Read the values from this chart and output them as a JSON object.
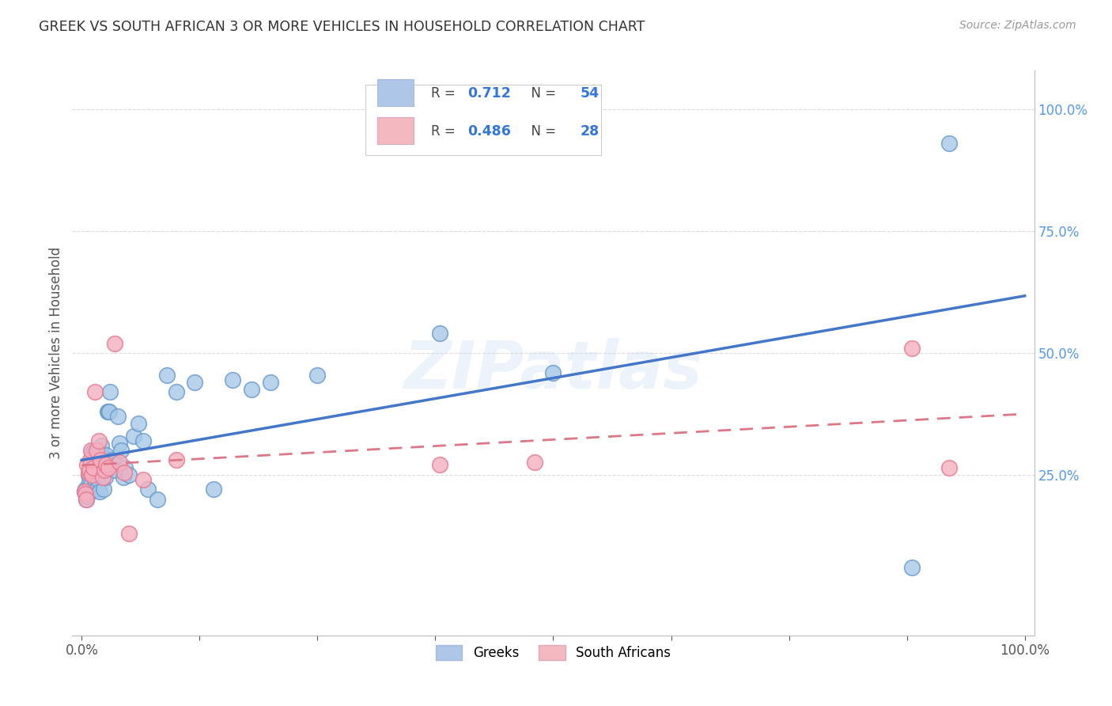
{
  "title": "GREEK VS SOUTH AFRICAN 3 OR MORE VEHICLES IN HOUSEHOLD CORRELATION CHART",
  "source": "Source: ZipAtlas.com",
  "ylabel": "3 or more Vehicles in Household",
  "right_yticks": [
    "100.0%",
    "75.0%",
    "50.0%",
    "25.0%"
  ],
  "right_ytick_vals": [
    1.0,
    0.75,
    0.5,
    0.25
  ],
  "xtick_vals": [
    0.0,
    0.125,
    0.25,
    0.375,
    0.5,
    0.625,
    0.75,
    0.875,
    1.0
  ],
  "xtick_labels": [
    "0.0%",
    "",
    "",
    "",
    "",
    "",
    "",
    "",
    "100.0%"
  ],
  "legend_entries": [
    {
      "label": "Greeks",
      "color": "#aec6e8",
      "R": "0.712",
      "N": "54"
    },
    {
      "label": "South Africans",
      "color": "#f4b8c1",
      "R": "0.486",
      "N": "28"
    }
  ],
  "greek_color": "#a8c8e8",
  "greek_edge": "#6699cc",
  "sa_color": "#f4b0c0",
  "sa_edge": "#e87890",
  "trendline_greek_color": "#4477cc",
  "trendline_sa_color": "#dd7788",
  "greek_x": [
    0.003,
    0.004,
    0.005,
    0.006,
    0.007,
    0.008,
    0.009,
    0.01,
    0.011,
    0.012,
    0.013,
    0.014,
    0.015,
    0.016,
    0.017,
    0.018,
    0.019,
    0.02,
    0.021,
    0.022,
    0.023,
    0.024,
    0.025,
    0.026,
    0.027,
    0.028,
    0.029,
    0.03,
    0.032,
    0.034,
    0.036,
    0.038,
    0.04,
    0.042,
    0.044,
    0.046,
    0.05,
    0.055,
    0.06,
    0.065,
    0.07,
    0.08,
    0.09,
    0.1,
    0.12,
    0.14,
    0.16,
    0.18,
    0.2,
    0.25,
    0.38,
    0.5,
    0.88,
    0.92
  ],
  "greek_y": [
    0.215,
    0.22,
    0.2,
    0.205,
    0.25,
    0.235,
    0.215,
    0.23,
    0.295,
    0.27,
    0.3,
    0.24,
    0.26,
    0.22,
    0.24,
    0.3,
    0.215,
    0.27,
    0.31,
    0.265,
    0.22,
    0.285,
    0.245,
    0.29,
    0.38,
    0.38,
    0.38,
    0.42,
    0.28,
    0.275,
    0.26,
    0.37,
    0.315,
    0.3,
    0.245,
    0.265,
    0.25,
    0.33,
    0.355,
    0.32,
    0.22,
    0.2,
    0.455,
    0.42,
    0.44,
    0.22,
    0.445,
    0.425,
    0.44,
    0.455,
    0.54,
    0.46,
    0.06,
    0.93
  ],
  "sa_x": [
    0.003,
    0.004,
    0.005,
    0.006,
    0.007,
    0.008,
    0.009,
    0.01,
    0.011,
    0.012,
    0.014,
    0.016,
    0.018,
    0.02,
    0.022,
    0.024,
    0.026,
    0.028,
    0.035,
    0.04,
    0.045,
    0.05,
    0.065,
    0.1,
    0.38,
    0.48,
    0.88,
    0.92
  ],
  "sa_y": [
    0.215,
    0.21,
    0.2,
    0.27,
    0.255,
    0.26,
    0.28,
    0.3,
    0.25,
    0.265,
    0.42,
    0.3,
    0.32,
    0.28,
    0.245,
    0.26,
    0.27,
    0.265,
    0.52,
    0.275,
    0.255,
    0.13,
    0.24,
    0.28,
    0.27,
    0.275,
    0.51,
    0.265
  ],
  "watermark_text": "ZIPatlas",
  "background_color": "#ffffff",
  "grid_color": "#cccccc",
  "xlim": [
    -0.01,
    1.01
  ],
  "ylim": [
    -0.08,
    1.08
  ]
}
